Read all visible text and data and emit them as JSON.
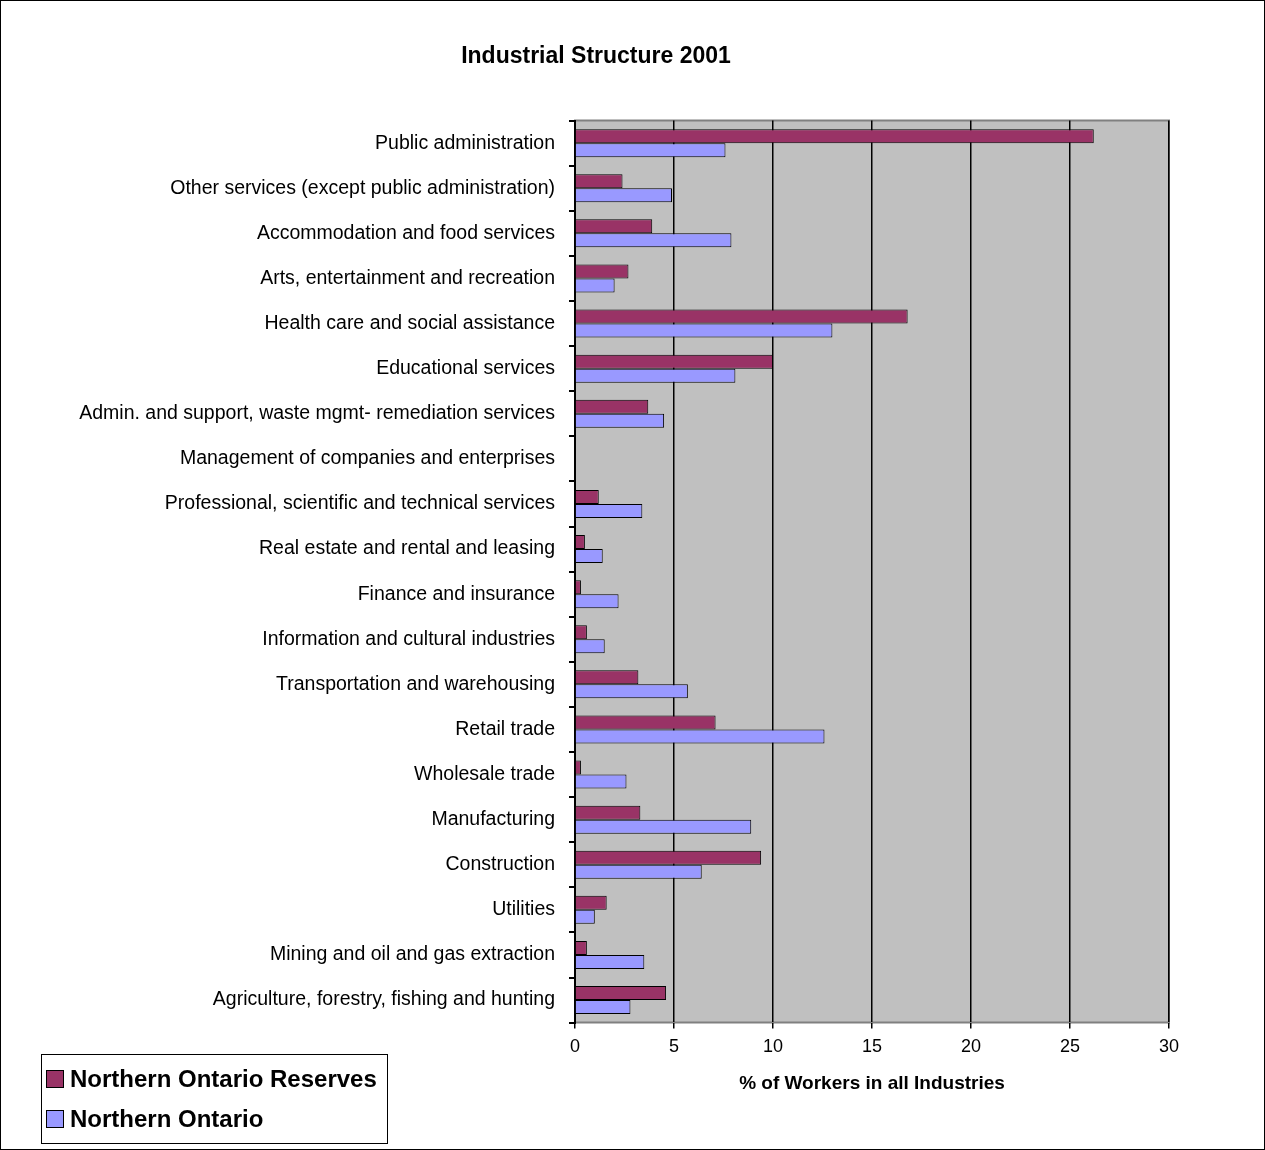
{
  "chart_data": {
    "type": "bar",
    "orientation": "horizontal",
    "title": "Industrial Structure 2001",
    "xlabel": "% of Workers in all Industries",
    "categories": [
      "Public administration",
      "Other services (except public administration)",
      "Accommodation and food services",
      "Arts, entertainment and recreation",
      "Health care and social assistance",
      "Educational services",
      "Admin. and support, waste mgmt- remediation services",
      "Management of companies and enterprises",
      "Professional, scientific and technical services",
      "Real estate and rental and leasing",
      "Finance and insurance",
      "Information and cultural industries",
      "Transportation and warehousing",
      "Retail trade",
      "Wholesale trade",
      "Manufacturing",
      "Construction",
      "Utilities",
      "Mining and oil and gas extraction",
      "Agriculture, forestry, fishing and hunting"
    ],
    "series": [
      {
        "name": "Northern Ontario Reserves",
        "color": "#993366",
        "values": [
          26.2,
          2.4,
          3.9,
          2.7,
          16.8,
          10.0,
          3.7,
          0,
          1.2,
          0.5,
          0.3,
          0.6,
          3.2,
          7.1,
          0.3,
          3.3,
          9.4,
          1.6,
          0.6,
          4.6
        ]
      },
      {
        "name": "Northern Ontario",
        "color": "#9999ff",
        "values": [
          7.6,
          4.9,
          7.9,
          2.0,
          13.0,
          8.1,
          4.5,
          0,
          3.4,
          1.4,
          2.2,
          1.5,
          5.7,
          12.6,
          2.6,
          8.9,
          6.4,
          1.0,
          3.5,
          2.8
        ]
      }
    ],
    "xlim": [
      0,
      30
    ],
    "xticks": [
      0,
      5,
      10,
      15,
      20,
      25,
      30
    ],
    "grid": "x",
    "legend": "bottom left"
  }
}
